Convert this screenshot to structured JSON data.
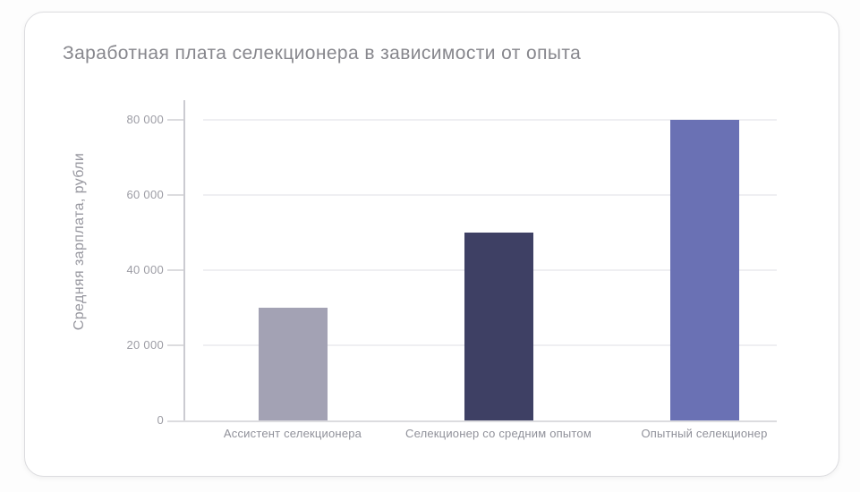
{
  "page": {
    "background_color": "#fdfdfd",
    "card_background": "#ffffff",
    "card_border_color": "#dcdcdf"
  },
  "chart_data": {
    "type": "bar",
    "title": "Заработная плата селекционера в зависимости от опыта",
    "ylabel": "Средняя зарплата, рубли",
    "xlabel": "",
    "categories": [
      "Ассистент селекционера",
      "Селекционер со средним опытом",
      "Опытный селекционер"
    ],
    "values": [
      30000,
      50000,
      80000
    ],
    "bar_colors": [
      "#a3a2b4",
      "#3e4064",
      "#6a71b4"
    ],
    "ylim": [
      0,
      80000
    ],
    "yticks": [
      0,
      20000,
      40000,
      60000,
      80000
    ],
    "ytick_labels": [
      "0",
      "20 000",
      "40 000",
      "60 000",
      "80 000"
    ],
    "grid": "horizontal",
    "legend": "none",
    "title_color": "#87878d",
    "axis_text_color": "#9c9ca4"
  }
}
